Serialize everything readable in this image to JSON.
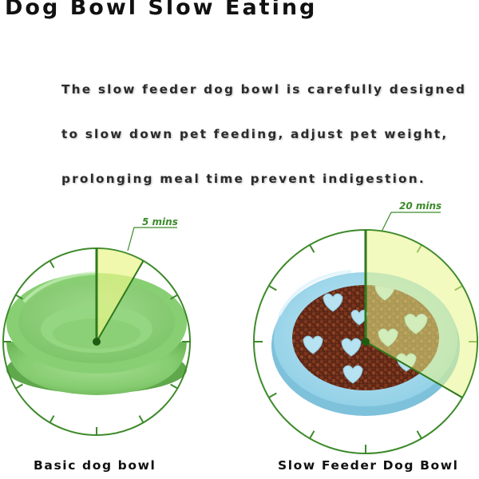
{
  "title": "Dog Bowl Slow Eating",
  "description_lines": [
    "The slow feeder dog bowl is carefully designed",
    "to slow down pet feeding, adjust pet weight,",
    "prolonging meal time prevent indigestion."
  ],
  "basic_bowl": {
    "time_label": "5 mins",
    "caption": "Basic dog bowl",
    "bowl_color": "#8fd27a"
  },
  "slow_bowl": {
    "time_label": "20 mins",
    "caption": "Slow Feeder Dog Bowl",
    "bowl_color": "#a9dcee"
  },
  "colors": {
    "dial_green": "#3d8a2a",
    "sector_fill": "#e9f58a",
    "kibble": "#6b2e1a"
  }
}
